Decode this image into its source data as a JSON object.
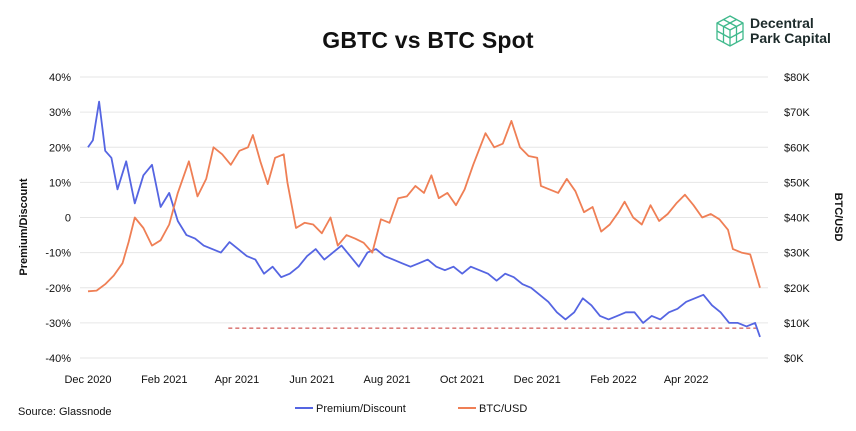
{
  "title": "GBTC vs BTC Spot",
  "logo": {
    "line1": "Decentral",
    "line2": "Park Capital"
  },
  "source": "Source: Glassnode",
  "colors": {
    "premium": "#5565e2",
    "btc": "#ef7f55",
    "ref_line": "#c8302c",
    "grid": "#e6e6e6"
  },
  "chart_data": {
    "type": "line",
    "title": "GBTC vs BTC Spot",
    "xlabel": "",
    "y_left_label": "Premium/Discount",
    "y_right_label": "BTC/USD",
    "x_range": [
      "2020-12-01",
      "2022-05-31"
    ],
    "x_ticks": [
      {
        "date": "2020-12-01",
        "label": "Dec 2020"
      },
      {
        "date": "2021-02-01",
        "label": "Feb 2021"
      },
      {
        "date": "2021-04-01",
        "label": "Apr 2021"
      },
      {
        "date": "2021-06-01",
        "label": "Jun 2021"
      },
      {
        "date": "2021-08-01",
        "label": "Aug 2021"
      },
      {
        "date": "2021-10-01",
        "label": "Oct 2021"
      },
      {
        "date": "2021-12-01",
        "label": "Dec 2021"
      },
      {
        "date": "2022-02-01",
        "label": "Feb 2022"
      },
      {
        "date": "2022-04-01",
        "label": "Apr 2022"
      }
    ],
    "y_left": {
      "min": -40,
      "max": 40,
      "ticks": [
        40,
        30,
        20,
        10,
        0,
        -10,
        -20,
        -30,
        -40
      ],
      "labels": [
        "40%",
        "30%",
        "20%",
        "10%",
        "0",
        "-10%",
        "-20%",
        "-30%",
        "-40%"
      ]
    },
    "y_right": {
      "min": 0,
      "max": 80000,
      "ticks": [
        80000,
        70000,
        60000,
        50000,
        40000,
        30000,
        20000,
        10000,
        0
      ],
      "labels": [
        "$80K",
        "$70K",
        "$60K",
        "$50K",
        "$40K",
        "$30K",
        "$20K",
        "$10K",
        "$0K"
      ]
    },
    "grid": "horizontal",
    "legend_position": "bottom",
    "series": [
      {
        "name": "Premium/Discount",
        "axis": "left",
        "x": [
          "2020-12-01",
          "2020-12-05",
          "2020-12-10",
          "2020-12-15",
          "2020-12-20",
          "2020-12-25",
          "2021-01-01",
          "2021-01-08",
          "2021-01-15",
          "2021-01-22",
          "2021-01-29",
          "2021-02-05",
          "2021-02-12",
          "2021-02-19",
          "2021-02-26",
          "2021-03-05",
          "2021-03-12",
          "2021-03-19",
          "2021-03-26",
          "2021-04-02",
          "2021-04-09",
          "2021-04-16",
          "2021-04-23",
          "2021-04-30",
          "2021-05-07",
          "2021-05-14",
          "2021-05-21",
          "2021-05-28",
          "2021-06-04",
          "2021-06-11",
          "2021-06-18",
          "2021-06-25",
          "2021-07-02",
          "2021-07-09",
          "2021-07-16",
          "2021-07-23",
          "2021-07-30",
          "2021-08-06",
          "2021-08-13",
          "2021-08-20",
          "2021-08-27",
          "2021-09-03",
          "2021-09-10",
          "2021-09-17",
          "2021-09-24",
          "2021-10-01",
          "2021-10-08",
          "2021-10-15",
          "2021-10-22",
          "2021-10-29",
          "2021-11-05",
          "2021-11-12",
          "2021-11-19",
          "2021-11-26",
          "2021-12-03",
          "2021-12-10",
          "2021-12-17",
          "2021-12-24",
          "2021-12-31",
          "2022-01-07",
          "2022-01-14",
          "2022-01-21",
          "2022-01-28",
          "2022-02-04",
          "2022-02-11",
          "2022-02-18",
          "2022-02-25",
          "2022-03-04",
          "2022-03-11",
          "2022-03-18",
          "2022-03-25",
          "2022-04-01",
          "2022-04-08",
          "2022-04-15",
          "2022-04-22",
          "2022-04-29",
          "2022-05-06",
          "2022-05-13",
          "2022-05-20",
          "2022-05-27",
          "2022-05-31"
        ],
        "y": [
          20,
          22,
          33,
          19,
          17,
          8,
          16,
          4,
          12,
          15,
          3,
          7,
          -1,
          -5,
          -6,
          -8,
          -9,
          -10,
          -7,
          -9,
          -11,
          -12,
          -16,
          -14,
          -17,
          -16,
          -14,
          -11,
          -9,
          -12,
          -10,
          -8,
          -11,
          -14,
          -10,
          -9,
          -11,
          -12,
          -13,
          -14,
          -13,
          -12,
          -14,
          -15,
          -14,
          -16,
          -14,
          -15,
          -16,
          -18,
          -16,
          -17,
          -19,
          -20,
          -22,
          -24,
          -27,
          -29,
          -27,
          -23,
          -25,
          -28,
          -29,
          -28,
          -27,
          -27,
          -30,
          -28,
          -29,
          -27,
          -26,
          -24,
          -23,
          -22,
          -25,
          -27,
          -30,
          -30,
          -31,
          -30,
          -34
        ]
      },
      {
        "name": "BTC/USD",
        "axis": "right",
        "x": [
          "2020-12-01",
          "2020-12-08",
          "2020-12-15",
          "2020-12-22",
          "2020-12-29",
          "2021-01-03",
          "2021-01-08",
          "2021-01-15",
          "2021-01-22",
          "2021-01-29",
          "2021-02-05",
          "2021-02-12",
          "2021-02-21",
          "2021-02-28",
          "2021-03-07",
          "2021-03-13",
          "2021-03-20",
          "2021-03-27",
          "2021-04-03",
          "2021-04-10",
          "2021-04-14",
          "2021-04-20",
          "2021-04-26",
          "2021-05-02",
          "2021-05-09",
          "2021-05-12",
          "2021-05-19",
          "2021-05-26",
          "2021-06-02",
          "2021-06-09",
          "2021-06-16",
          "2021-06-22",
          "2021-06-29",
          "2021-07-06",
          "2021-07-13",
          "2021-07-20",
          "2021-07-27",
          "2021-08-03",
          "2021-08-10",
          "2021-08-17",
          "2021-08-24",
          "2021-08-31",
          "2021-09-06",
          "2021-09-12",
          "2021-09-19",
          "2021-09-26",
          "2021-10-03",
          "2021-10-10",
          "2021-10-20",
          "2021-10-27",
          "2021-11-03",
          "2021-11-10",
          "2021-11-17",
          "2021-11-24",
          "2021-12-01",
          "2021-12-04",
          "2021-12-11",
          "2021-12-18",
          "2021-12-25",
          "2022-01-01",
          "2022-01-08",
          "2022-01-15",
          "2022-01-22",
          "2022-01-29",
          "2022-02-05",
          "2022-02-10",
          "2022-02-17",
          "2022-02-24",
          "2022-03-03",
          "2022-03-10",
          "2022-03-17",
          "2022-03-24",
          "2022-03-31",
          "2022-04-07",
          "2022-04-14",
          "2022-04-21",
          "2022-04-28",
          "2022-05-05",
          "2022-05-09",
          "2022-05-16",
          "2022-05-23",
          "2022-05-31"
        ],
        "y": [
          19000,
          19200,
          21000,
          23500,
          27000,
          33000,
          40000,
          37000,
          32000,
          33500,
          38000,
          47000,
          56000,
          46000,
          51000,
          60000,
          58000,
          55000,
          59000,
          60000,
          63500,
          56000,
          49500,
          57000,
          58000,
          50000,
          37000,
          38500,
          38000,
          35500,
          40000,
          32000,
          35000,
          34000,
          32800,
          30000,
          39500,
          38500,
          45500,
          46000,
          49000,
          47000,
          52000,
          45500,
          47000,
          43500,
          48000,
          55000,
          64000,
          60000,
          61000,
          67500,
          60000,
          57500,
          57000,
          49000,
          48000,
          47000,
          51000,
          47500,
          41500,
          43000,
          36000,
          38000,
          41500,
          44500,
          40000,
          38000,
          43500,
          39000,
          41000,
          44000,
          46500,
          43500,
          40000,
          41000,
          39500,
          36500,
          31000,
          30000,
          29500,
          20000
        ]
      }
    ],
    "reference_line": {
      "axis": "left",
      "y": -31.5,
      "x_start": "2021-03-25",
      "x_end": "2022-05-31",
      "style": "dashed"
    }
  }
}
